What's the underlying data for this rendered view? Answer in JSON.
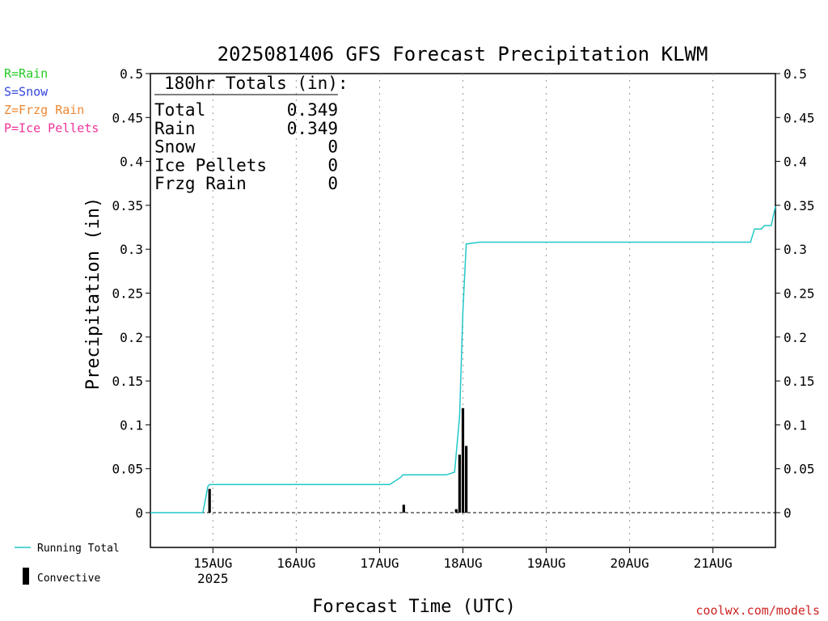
{
  "chart_data": {
    "type": "bar",
    "title": "2025081406 GFS Forecast Precipitation KLWM",
    "ylabel": "Precipitation (in)",
    "xlabel": "Forecast Time (UTC)",
    "ylim": [
      0,
      0.5
    ],
    "xlim_days": [
      14.25,
      21.75
    ],
    "y_ticks": [
      0,
      0.05,
      0.1,
      0.15,
      0.2,
      0.25,
      0.3,
      0.35,
      0.4,
      0.45,
      0.5
    ],
    "y_tick_labels": [
      "0",
      "0.05",
      "0.1",
      "0.15",
      "0.2",
      "0.25",
      "0.3",
      "0.35",
      "0.4",
      "0.45",
      "0.5"
    ],
    "x_ticks": [
      {
        "day": 15,
        "label": "15AUG",
        "sub": "2025"
      },
      {
        "day": 16,
        "label": "16AUG",
        "sub": ""
      },
      {
        "day": 17,
        "label": "17AUG",
        "sub": ""
      },
      {
        "day": 18,
        "label": "18AUG",
        "sub": ""
      },
      {
        "day": 19,
        "label": "19AUG",
        "sub": ""
      },
      {
        "day": 20,
        "label": "20AUG",
        "sub": ""
      },
      {
        "day": 21,
        "label": "21AUG",
        "sub": ""
      }
    ],
    "grid": "vertical-dotted",
    "series": [
      {
        "name": "Running Total",
        "kind": "line",
        "color": "#22c7c7",
        "points": [
          [
            14.25,
            0
          ],
          [
            14.88,
            0
          ],
          [
            14.94,
            0.03
          ],
          [
            14.96,
            0.032
          ],
          [
            17.12,
            0.032
          ],
          [
            17.25,
            0.04
          ],
          [
            17.28,
            0.043
          ],
          [
            17.8,
            0.043
          ],
          [
            17.9,
            0.046
          ],
          [
            17.96,
            0.11
          ],
          [
            18.0,
            0.23
          ],
          [
            18.04,
            0.306
          ],
          [
            18.2,
            0.308
          ],
          [
            21.45,
            0.308
          ],
          [
            21.5,
            0.323
          ],
          [
            21.58,
            0.323
          ],
          [
            21.62,
            0.327
          ],
          [
            21.7,
            0.327
          ],
          [
            21.75,
            0.349
          ]
        ]
      },
      {
        "name": "Convective",
        "kind": "bar",
        "color": "#000000",
        "bars": [
          [
            14.96,
            0.027
          ],
          [
            17.29,
            0.009
          ],
          [
            17.92,
            0.004
          ],
          [
            17.96,
            0.066
          ],
          [
            18.0,
            0.119
          ],
          [
            18.04,
            0.076
          ]
        ]
      }
    ]
  },
  "totals_box": {
    "header": "180hr Totals (in):",
    "rows": [
      {
        "label": "Total",
        "value": "0.349"
      },
      {
        "label": "Rain",
        "value": "0.349"
      },
      {
        "label": "Snow",
        "value": "0"
      },
      {
        "label": "Ice Pellets",
        "value": "0"
      },
      {
        "label": "Frzg Rain",
        "value": "0"
      }
    ]
  },
  "side_legend": [
    {
      "text": "R=Rain",
      "color": "#22cc22"
    },
    {
      "text": "S=Snow",
      "color": "#3344dd"
    },
    {
      "text": "Z=Frzg Rain",
      "color": "#ee8833"
    },
    {
      "text": "P=Ice Pellets",
      "color": "#ee3399"
    }
  ],
  "bottom_legend": {
    "line_label": "Running Total",
    "line_color": "#22c7c7",
    "bar_label": "Convective",
    "bar_color": "#000000"
  },
  "credit": {
    "text": "coolwx.com/models",
    "color": "#cc2222"
  }
}
